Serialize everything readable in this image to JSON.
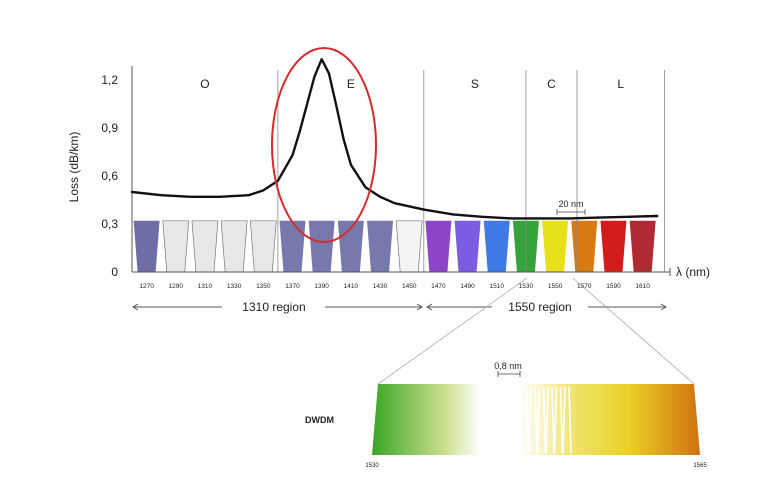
{
  "chart_data": {
    "type": "line",
    "ylabel": "Loss (dB/km)",
    "xlabel": "λ (nm)",
    "ylim": [
      0,
      1.3
    ],
    "xlim": [
      1260,
      1620
    ],
    "y_ticks": [
      "0",
      "0,3",
      "0,6",
      "0,9",
      "1,2"
    ],
    "y_tick_values": [
      0,
      0.3,
      0.6,
      0.9,
      1.2
    ],
    "bands": [
      {
        "label": "O",
        "from": 1260,
        "to": 1360
      },
      {
        "label": "E",
        "from": 1360,
        "to": 1460
      },
      {
        "label": "S",
        "from": 1460,
        "to": 1530
      },
      {
        "label": "C",
        "from": 1530,
        "to": 1565
      },
      {
        "label": "L",
        "from": 1565,
        "to": 1625
      }
    ],
    "band_boundaries": [
      1360,
      1460,
      1530,
      1565,
      1625
    ],
    "loss_curve": {
      "x": [
        1260,
        1280,
        1300,
        1320,
        1340,
        1350,
        1360,
        1370,
        1375,
        1380,
        1385,
        1390,
        1395,
        1400,
        1405,
        1410,
        1420,
        1430,
        1440,
        1460,
        1480,
        1500,
        1520,
        1540,
        1560,
        1580,
        1600,
        1620
      ],
      "y": [
        0.5,
        0.48,
        0.47,
        0.47,
        0.48,
        0.51,
        0.57,
        0.73,
        0.88,
        1.05,
        1.22,
        1.33,
        1.24,
        1.04,
        0.83,
        0.67,
        0.53,
        0.47,
        0.43,
        0.39,
        0.36,
        0.345,
        0.335,
        0.335,
        0.335,
        0.34,
        0.345,
        0.35
      ]
    },
    "channels": {
      "wavelengths": [
        "1270",
        "1290",
        "1310",
        "1330",
        "1350",
        "1370",
        "1390",
        "1410",
        "1430",
        "1450",
        "1470",
        "1490",
        "1510",
        "1530",
        "1550",
        "1570",
        "1590",
        "1610"
      ],
      "centers": [
        1270,
        1290,
        1310,
        1330,
        1350,
        1370,
        1390,
        1410,
        1430,
        1450,
        1470,
        1490,
        1510,
        1530,
        1550,
        1570,
        1590,
        1610
      ],
      "level": 0.32,
      "colors": [
        "#6f6ea7",
        "#e8e8e8",
        "#e8e8e8",
        "#e8e8e8",
        "#e8e8e8",
        "#7778ac",
        "#7778ac",
        "#7778ac",
        "#7778ac",
        "#f4f4f4",
        "#8e44c6",
        "#7c5ce0",
        "#3f7be6",
        "#34a43a",
        "#e8e01a",
        "#d77a12",
        "#d41b1b",
        "#b02a34"
      ]
    },
    "annotations": {
      "spacing_cwdm": "20 nm",
      "spacing_dwdm": "0,8 nm",
      "region_1310": "1310 region",
      "region_1550": "1550 region",
      "dwdm_label": "DWDM",
      "dwdm_start": "1530",
      "dwdm_end": "1565"
    },
    "colors": {
      "curve": "#111111",
      "highlight_ellipse": "#d62b2b",
      "axis": "#555555",
      "band_line": "#888888"
    }
  }
}
